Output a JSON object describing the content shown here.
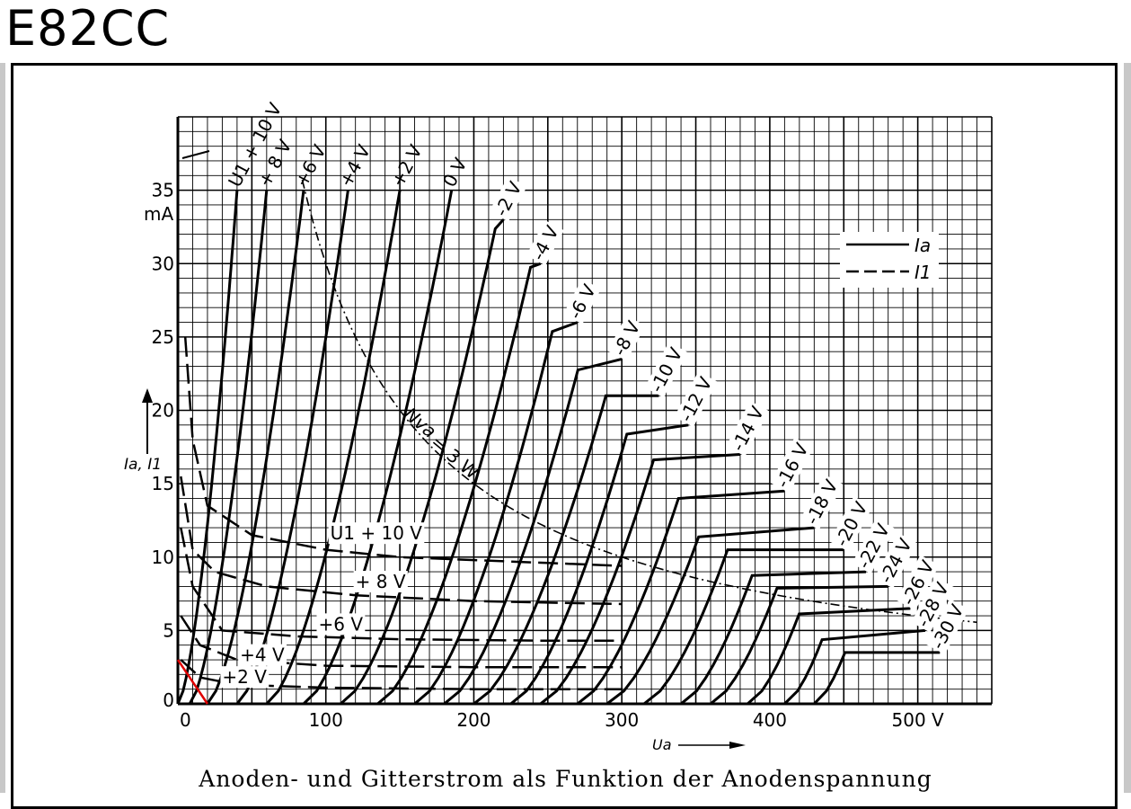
{
  "heading": "E82CC",
  "caption": "Anoden- und Gitterstrom als Funktion der Anodenspannung",
  "chart_data": {
    "type": "line",
    "xlabel": "Ua",
    "ylabel": "Ia, I1",
    "y_unit": "mA",
    "x_unit": "V",
    "xlim": [
      0,
      550
    ],
    "ylim": [
      0,
      40
    ],
    "x_ticks": [
      "0",
      "100",
      "200",
      "300",
      "400",
      "500 V"
    ],
    "y_ticks": [
      "0",
      "5",
      "10",
      "15",
      "20",
      "25",
      "30",
      "35"
    ],
    "grid": true,
    "legend": [
      {
        "symbol": "solid",
        "label": "Ia"
      },
      {
        "symbol": "dashed",
        "label": "I1"
      }
    ],
    "legend_position": "top-right",
    "anode_current_series": [
      {
        "name": "U1 +10 V",
        "label": "U1 + 10 V",
        "x0": 0,
        "x35": 40
      },
      {
        "name": "+8 V",
        "label": "+ 8 V",
        "x0": 8,
        "x35": 60
      },
      {
        "name": "+6 V",
        "label": "+6 V",
        "x0": 20,
        "x35": 85
      },
      {
        "name": "+4 V",
        "label": "+4 V",
        "x0": 40,
        "x35": 115
      },
      {
        "name": "+2 V",
        "label": "+2 V",
        "x0": 60,
        "x35": 150
      },
      {
        "name": "0 V",
        "label": "0 V",
        "x0": 85,
        "x35": 185
      },
      {
        "name": "-2 V",
        "label": "-2 V",
        "x0": 110,
        "x35": 220
      },
      {
        "name": "-4 V",
        "label": "-4 V",
        "x0": 135,
        "x35": 250
      },
      {
        "name": "-6 V",
        "label": "-6 V",
        "x0": 160,
        "x35": 275
      },
      {
        "name": "-8 V",
        "label": "-8 V",
        "x0": 180,
        "x35": 300
      },
      {
        "name": "-10 V",
        "label": "-10 V",
        "x0": 200,
        "x35": 325
      },
      {
        "name": "-12 V",
        "label": "-12 V",
        "x0": 225,
        "x35": 345
      },
      {
        "name": "-14 V",
        "label": "-14 V",
        "x0": 245,
        "x35": 370
      },
      {
        "name": "-16 V",
        "label": "-16 V",
        "x0": 270,
        "x35": 395
      },
      {
        "name": "-18 V",
        "label": "-18 V",
        "x0": 290,
        "x35": 420
      },
      {
        "name": "-20 V",
        "label": "-20 V",
        "x0": 315,
        "x35": 440
      },
      {
        "name": "-22 V",
        "label": "-22 V",
        "x0": 340,
        "x35": 460
      },
      {
        "name": "-24 V",
        "label": "-24 V",
        "x0": 360,
        "x35": 480
      },
      {
        "name": "-26 V",
        "label": "-26 V",
        "x0": 385,
        "x35": 495
      },
      {
        "name": "-28 V",
        "label": "-28 V",
        "x0": 410,
        "x35": 510
      },
      {
        "name": "-30 V",
        "label": "-30 V",
        "x0": 430,
        "x35": 525
      }
    ],
    "anode_current_tops": [
      {
        "name": "U1 +10 V",
        "x": 40,
        "y": 35
      },
      {
        "name": "+8 V",
        "x": 60,
        "y": 35
      },
      {
        "name": "+6 V",
        "x": 85,
        "y": 35
      },
      {
        "name": "+4 V",
        "x": 115,
        "y": 35
      },
      {
        "name": "+2 V",
        "x": 150,
        "y": 35
      },
      {
        "name": "0 V",
        "x": 185,
        "y": 35
      },
      {
        "name": "-2 V",
        "x": 220,
        "y": 33
      },
      {
        "name": "-4 V",
        "x": 245,
        "y": 30
      },
      {
        "name": "-6 V",
        "x": 270,
        "y": 26
      },
      {
        "name": "-8 V",
        "x": 300,
        "y": 23.5
      },
      {
        "name": "-10 V",
        "x": 325,
        "y": 21
      },
      {
        "name": "-12 V",
        "x": 345,
        "y": 19
      },
      {
        "name": "-14 V",
        "x": 380,
        "y": 17
      },
      {
        "name": "-16 V",
        "x": 410,
        "y": 14.5
      },
      {
        "name": "-18 V",
        "x": 430,
        "y": 12
      },
      {
        "name": "-20 V",
        "x": 450,
        "y": 10.5
      },
      {
        "name": "-22 V",
        "x": 465,
        "y": 9
      },
      {
        "name": "-24 V",
        "x": 480,
        "y": 8
      },
      {
        "name": "-26 V",
        "x": 495,
        "y": 6.5
      },
      {
        "name": "-28 V",
        "x": 505,
        "y": 5
      },
      {
        "name": "-30 V",
        "x": 515,
        "y": 3.5
      }
    ],
    "grid_current_series": [
      {
        "name": "U1 +10 V",
        "label": "U1 + 10 V",
        "points": [
          [
            5,
            25
          ],
          [
            10,
            18
          ],
          [
            20,
            13.5
          ],
          [
            50,
            11.5
          ],
          [
            100,
            10.5
          ],
          [
            150,
            10
          ],
          [
            250,
            9.6
          ],
          [
            300,
            9.4
          ]
        ]
      },
      {
        "name": "+8 V",
        "label": "+ 8 V",
        "points": [
          [
            2,
            15.5
          ],
          [
            10,
            10.5
          ],
          [
            25,
            9
          ],
          [
            60,
            8
          ],
          [
            120,
            7.4
          ],
          [
            200,
            7
          ],
          [
            300,
            6.8
          ]
        ]
      },
      {
        "name": "+6 V",
        "label": "+6 V",
        "points": [
          [
            2,
            12
          ],
          [
            10,
            8
          ],
          [
            30,
            5
          ],
          [
            80,
            4.6
          ],
          [
            150,
            4.4
          ],
          [
            250,
            4.3
          ],
          [
            300,
            4.3
          ]
        ]
      },
      {
        "name": "+4 V",
        "label": "+4 V",
        "points": [
          [
            2,
            6
          ],
          [
            15,
            4
          ],
          [
            40,
            3
          ],
          [
            100,
            2.6
          ],
          [
            200,
            2.5
          ],
          [
            300,
            2.5
          ]
        ]
      },
      {
        "name": "+2 V",
        "label": "+2 V",
        "points": [
          [
            2,
            3
          ],
          [
            15,
            1.8
          ],
          [
            40,
            1.3
          ],
          [
            100,
            1.1
          ],
          [
            200,
            1.0
          ],
          [
            300,
            1.0
          ]
        ]
      }
    ],
    "power_limit_curve": {
      "name": "Nva = 3 W",
      "label_a": "Nva",
      "label_b": "= 3 W",
      "watts": 3
    },
    "red_marker": [
      [
        0,
        3
      ],
      [
        20,
        0
      ]
    ]
  }
}
